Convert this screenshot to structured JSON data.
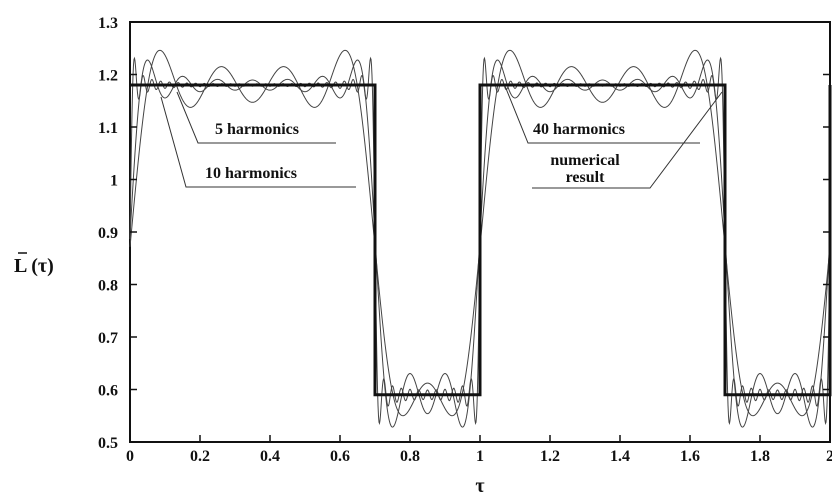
{
  "chart_data": {
    "type": "line",
    "title": "",
    "xlabel": "τ",
    "ylabel": "L (τ)",
    "xlim": [
      0,
      2
    ],
    "ylim": [
      0.5,
      1.3
    ],
    "x_ticks": [
      "0",
      "0.2",
      "0.4",
      "0.6",
      "0.8",
      "1",
      "1.2",
      "1.4",
      "1.6",
      "1.8",
      "2"
    ],
    "y_ticks": [
      "0.5",
      "0.6",
      "0.7",
      "0.8",
      "0.9",
      "1",
      "1.1",
      "1.2",
      "1.3"
    ],
    "grid": false,
    "square_wave": {
      "high": 1.18,
      "low": 0.59,
      "period": 1,
      "switch_at": 0.7
    },
    "series": [
      {
        "name": "numerical result",
        "harmonics": 0,
        "color": "#111111"
      },
      {
        "name": "5 harmonics",
        "harmonics": 5,
        "color": "#444444"
      },
      {
        "name": "10 harmonics",
        "harmonics": 10,
        "color": "#444444"
      },
      {
        "name": "40 harmonics",
        "harmonics": 40,
        "color": "#444444"
      }
    ],
    "annotations": [
      {
        "text": "5 harmonics",
        "target": [
          0.1,
          1.165
        ]
      },
      {
        "text": "10 harmonics",
        "target": [
          0.06,
          1.16
        ]
      },
      {
        "text": "40 harmonics",
        "target": [
          1.1,
          1.185
        ]
      },
      {
        "text": "numerical",
        "target": [
          1.68,
          1.17
        ]
      },
      {
        "text": "result",
        "target": [
          1.68,
          1.17
        ]
      }
    ]
  }
}
